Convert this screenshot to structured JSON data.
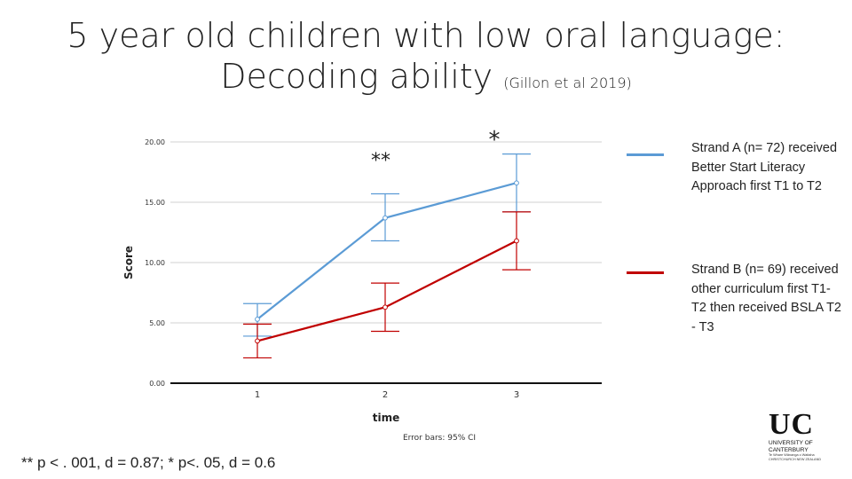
{
  "title": {
    "line1": "5 year old children with low oral language:",
    "line2": "Decoding ability",
    "citation": "(Gillon et al 2019)"
  },
  "legend": [
    {
      "label": "Strand A (n= 72) received Better Start Literacy Approach first T1 to T2",
      "color": "#5b9bd5"
    },
    {
      "label": "Strand B (n= 69) received other curriculum first T1- T2 then received BSLA T2 - T3",
      "color": "#c00000"
    }
  ],
  "footnote": "** p < . 001, d = 0.87; * p<. 05, d = 0.6",
  "logo": {
    "mark": "UC",
    "line1": "UNIVERSITY OF",
    "line2": "CANTERBURY",
    "line3": "Te Whare Wānanga o Waitaha",
    "line4": "CHRISTCHURCH NEW ZEALAND"
  },
  "chart_data": {
    "type": "line",
    "x": [
      1,
      2,
      3
    ],
    "xlabel": "time",
    "ylabel": "Score",
    "ylim": [
      0,
      20
    ],
    "yticks": [
      "0.00",
      "5.00",
      "10.00",
      "15.00",
      "20.00"
    ],
    "xticks": [
      "1",
      "2",
      "3"
    ],
    "grid": true,
    "error_bar_note": "Error bars: 95% CI",
    "series": [
      {
        "color": "#5b9bd5",
        "values": [
          5.3,
          13.7,
          16.6
        ],
        "ci_low": [
          3.9,
          11.8,
          14.2
        ],
        "ci_high": [
          6.6,
          15.7,
          19.0
        ]
      },
      {
        "color": "#c00000",
        "values": [
          3.5,
          6.3,
          11.8
        ],
        "ci_low": [
          2.1,
          4.3,
          9.4
        ],
        "ci_high": [
          4.9,
          8.3,
          14.2
        ]
      }
    ],
    "annotations": [
      {
        "text": "**",
        "x": 2
      },
      {
        "text": "*",
        "x": 3
      }
    ]
  }
}
